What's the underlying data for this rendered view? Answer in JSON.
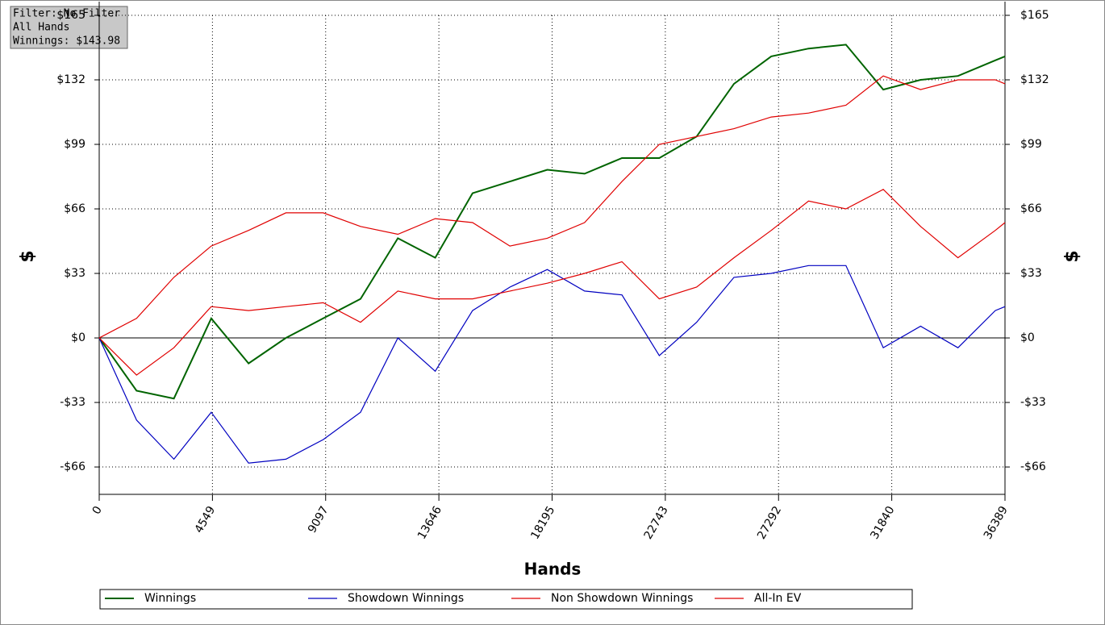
{
  "chart_data": {
    "type": "line",
    "annotations": [
      "Filter: No Filter",
      "All Hands",
      "Winnings: $143.98"
    ],
    "x_label": "Hands",
    "y_label": "$",
    "y2_label": "$",
    "x": [
      0,
      1500,
      3000,
      4500,
      6000,
      7500,
      9000,
      10500,
      12000,
      13500,
      15000,
      16500,
      18000,
      19500,
      21000,
      22500,
      24000,
      25500,
      27000,
      28500,
      30000,
      31500,
      33000,
      34500,
      36000,
      36389
    ],
    "xlim": [
      0,
      36389
    ],
    "xticks": [
      0,
      4549,
      9097,
      13646,
      18195,
      22743,
      27292,
      31840,
      36389
    ],
    "ylim": [
      -80,
      165
    ],
    "yticks": [
      {
        "value": -66,
        "label": "-$66"
      },
      {
        "value": -33,
        "label": "-$33"
      },
      {
        "value": 0,
        "label": "$0"
      },
      {
        "value": 33,
        "label": "$33"
      },
      {
        "value": 66,
        "label": "$66"
      },
      {
        "value": 99,
        "label": "$99"
      },
      {
        "value": 132,
        "label": "$132"
      },
      {
        "value": 165,
        "label": "$165"
      }
    ],
    "grid": true,
    "series": [
      {
        "name": "Winnings",
        "color": "#006400",
        "values": [
          0,
          -27,
          -31,
          10,
          -13,
          0,
          10,
          20,
          51,
          41,
          74,
          80,
          86,
          84,
          92,
          92,
          103,
          130,
          144,
          148,
          150,
          127,
          132,
          134,
          142,
          144
        ]
      },
      {
        "name": "Showdown Winnings",
        "color": "#0000c0",
        "values": [
          0,
          -42,
          -62,
          -38,
          -64,
          -62,
          -52,
          -38,
          0,
          -17,
          14,
          26,
          35,
          24,
          22,
          -9,
          8,
          31,
          33,
          37,
          37,
          -5,
          6,
          -5,
          14,
          16
        ]
      },
      {
        "name": "Non Showdown Winnings",
        "color": "#e00000",
        "values": [
          0,
          -19,
          -5,
          16,
          14,
          16,
          18,
          8,
          24,
          20,
          20,
          24,
          28,
          33,
          39,
          20,
          26,
          41,
          55,
          70,
          66,
          76,
          57,
          41,
          55,
          59
        ]
      },
      {
        "name": "All-In EV",
        "color": "#e00000",
        "values": [
          0,
          10,
          31,
          47,
          55,
          64,
          64,
          57,
          53,
          61,
          59,
          47,
          51,
          59,
          80,
          99,
          103,
          107,
          113,
          115,
          119,
          134,
          127,
          132,
          132,
          130
        ]
      }
    ]
  }
}
